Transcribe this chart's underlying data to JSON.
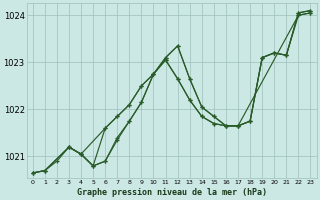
{
  "background_color": "#cce8e4",
  "grid_color": "#9dbfbb",
  "line_color": "#2a5c2a",
  "marker_color": "#2a5c2a",
  "title": "Graphe pression niveau de la mer (hPa)",
  "xlim": [
    -0.5,
    23.5
  ],
  "ylim": [
    1020.55,
    1024.25
  ],
  "yticks": [
    1021,
    1022,
    1023,
    1024
  ],
  "xtick_labels": [
    "0",
    "1",
    "2",
    "3",
    "4",
    "5",
    "6",
    "7",
    "8",
    "9",
    "10",
    "11",
    "12",
    "13",
    "14",
    "15",
    "16",
    "17",
    "18",
    "19",
    "20",
    "21",
    "22",
    "23"
  ],
  "series1_x": [
    0,
    1,
    2,
    3,
    4,
    5,
    6,
    7,
    8,
    9,
    10,
    11,
    12,
    13,
    14,
    15,
    16,
    17,
    18,
    19,
    20,
    21,
    22,
    23
  ],
  "series1_y": [
    1020.65,
    1020.7,
    1020.9,
    1021.2,
    1021.05,
    1020.8,
    1020.9,
    1021.35,
    1021.75,
    1022.15,
    1022.75,
    1023.1,
    1023.35,
    1022.65,
    1022.05,
    1021.85,
    1021.65,
    1021.65,
    1021.75,
    1023.1,
    1023.2,
    1023.15,
    1024.0,
    1024.05
  ],
  "series2_x": [
    0,
    1,
    3,
    4,
    5,
    6,
    7,
    8,
    9,
    10,
    11,
    12,
    13,
    14,
    15,
    16,
    17,
    22,
    23
  ],
  "series2_y": [
    1020.65,
    1020.7,
    1021.2,
    1021.05,
    1020.8,
    1020.9,
    1021.4,
    1021.75,
    1022.15,
    1022.75,
    1023.1,
    1023.35,
    1022.65,
    1022.05,
    1021.85,
    1021.65,
    1021.65,
    1024.0,
    1024.05
  ],
  "series3_x": [
    3,
    4,
    6,
    7,
    8,
    9,
    10,
    11,
    12,
    13,
    14,
    15,
    16,
    17,
    18,
    19,
    20,
    21,
    22,
    23
  ],
  "series3_y": [
    1021.2,
    1021.05,
    1021.6,
    1021.85,
    1022.1,
    1022.5,
    1022.75,
    1023.05,
    1022.65,
    1022.2,
    1021.85,
    1021.7,
    1021.65,
    1021.65,
    1021.75,
    1023.1,
    1023.2,
    1023.15,
    1024.05,
    1024.1
  ],
  "series4_x": [
    0,
    1,
    3,
    4,
    5,
    6,
    7,
    8,
    9,
    10,
    11,
    12,
    13,
    14,
    15,
    16,
    17,
    18,
    19,
    20,
    21,
    22,
    23
  ],
  "series4_y": [
    1020.65,
    1020.7,
    1021.2,
    1021.05,
    1020.8,
    1021.6,
    1021.85,
    1022.1,
    1022.5,
    1022.75,
    1023.05,
    1022.65,
    1022.2,
    1021.85,
    1021.7,
    1021.65,
    1021.65,
    1021.75,
    1023.1,
    1023.2,
    1023.15,
    1024.05,
    1024.1
  ]
}
